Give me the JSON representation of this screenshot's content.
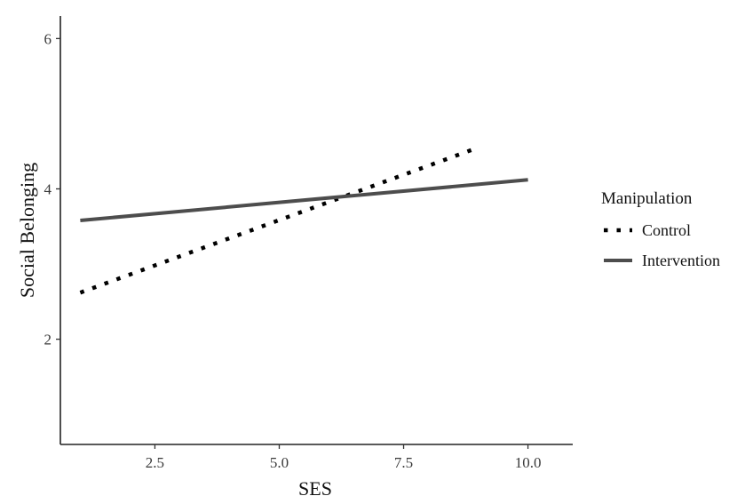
{
  "chart_data": {
    "type": "line",
    "xlabel": "SES",
    "ylabel": "Social Belonging",
    "xlim": [
      0.6,
      10.9
    ],
    "ylim": [
      0.6,
      6.3
    ],
    "x_ticks": [
      2.5,
      5.0,
      7.5,
      10.0
    ],
    "x_tick_labels": [
      "2.5",
      "5.0",
      "7.5",
      "10.0"
    ],
    "y_ticks": [
      2,
      4,
      6
    ],
    "y_tick_labels": [
      "2",
      "4",
      "6"
    ],
    "grid": false,
    "legend": {
      "title": "Manipulation",
      "position": "right"
    },
    "series": [
      {
        "name": "Control",
        "style": "dotted",
        "color": "#000000",
        "x": [
          1.0,
          9.0
        ],
        "y": [
          2.62,
          4.55
        ]
      },
      {
        "name": "Intervention",
        "style": "solid",
        "color": "#4d4d4d",
        "x": [
          1.0,
          10.0
        ],
        "y": [
          3.58,
          4.12
        ]
      }
    ]
  }
}
